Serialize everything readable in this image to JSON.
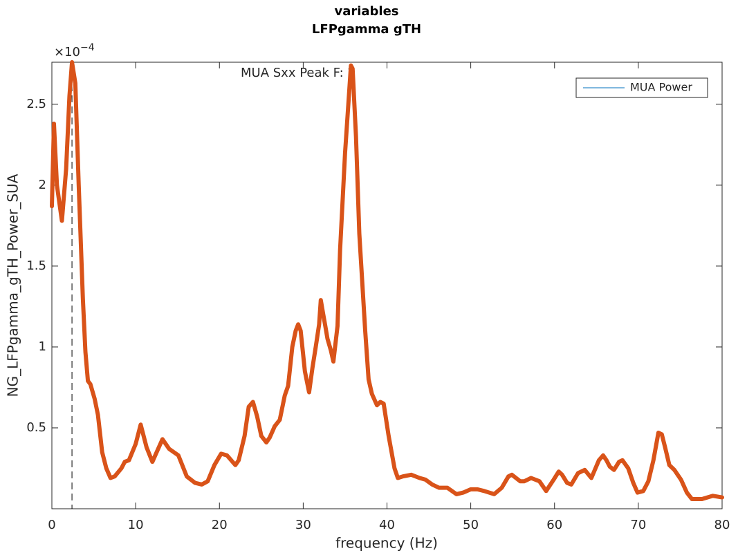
{
  "chart_data": {
    "type": "line",
    "title": [
      "variables",
      "LFPgamma gTH"
    ],
    "x_label": "frequency (Hz)",
    "y_label": "NG_LFPgamma_gTH_Power_SUA",
    "y_exponent": {
      "base": "×10",
      "power": "−4"
    },
    "annotation": "MUA Sxx Peak F: 2",
    "peak_x": 2.4,
    "xlim": [
      0,
      80
    ],
    "ylim": [
      0,
      2.76
    ],
    "xticks": [
      0,
      10,
      20,
      30,
      40,
      50,
      60,
      70,
      80
    ],
    "yticks": [
      0.5,
      1,
      1.5,
      2,
      2.5
    ],
    "legend_position": "upper right",
    "legend_color": "#0072bd",
    "series": [
      {
        "name": "MUA Power",
        "color": "#d95319",
        "x": [
          0,
          0.25,
          0.6,
          1.2,
          1.7,
          2.1,
          2.4,
          2.8,
          3.2,
          3.7,
          4.0,
          4.3,
          4.6,
          5.1,
          5.5,
          6.0,
          6.5,
          7.0,
          7.5,
          8.3,
          8.7,
          9.2,
          10.0,
          10.6,
          11.3,
          12.0,
          12.6,
          13.2,
          14.0,
          15.1,
          16.1,
          17.1,
          17.9,
          18.6,
          19.4,
          20.2,
          20.9,
          21.9,
          22.3,
          23.0,
          23.5,
          24.0,
          24.5,
          25.0,
          25.6,
          26.0,
          26.6,
          27.2,
          27.8,
          28.2,
          28.7,
          29.1,
          29.4,
          29.7,
          30.2,
          30.7,
          31.1,
          31.5,
          31.9,
          32.1,
          32.4,
          32.6,
          32.9,
          33.3,
          33.6,
          34.1,
          34.4,
          35.0,
          35.7,
          35.9,
          36.3,
          36.7,
          37.4,
          37.8,
          38.2,
          38.8,
          39.2,
          39.6,
          40.2,
          40.9,
          41.3,
          41.9,
          42.9,
          43.9,
          44.6,
          45.4,
          46.2,
          47.2,
          48.3,
          49.1,
          50.0,
          50.8,
          51.6,
          52.8,
          53.7,
          54.5,
          54.9,
          55.9,
          56.4,
          57.2,
          58.2,
          59.0,
          59.9,
          60.5,
          60.9,
          61.5,
          62.0,
          62.8,
          63.6,
          64.4,
          65.3,
          65.8,
          66.2,
          66.6,
          67.1,
          67.7,
          68.1,
          68.8,
          69.4,
          69.9,
          70.6,
          71.2,
          71.8,
          72.4,
          72.8,
          73.2,
          73.7,
          74.3,
          75.1,
          75.8,
          76.4,
          77.6,
          78.9,
          80
        ],
        "values": [
          1.87,
          2.38,
          2.0,
          1.78,
          2.1,
          2.55,
          2.76,
          2.63,
          2.0,
          1.3,
          0.97,
          0.79,
          0.77,
          0.68,
          0.58,
          0.35,
          0.25,
          0.19,
          0.2,
          0.25,
          0.29,
          0.3,
          0.4,
          0.52,
          0.38,
          0.29,
          0.36,
          0.43,
          0.37,
          0.33,
          0.2,
          0.16,
          0.15,
          0.17,
          0.27,
          0.34,
          0.33,
          0.27,
          0.3,
          0.45,
          0.63,
          0.66,
          0.57,
          0.45,
          0.41,
          0.44,
          0.51,
          0.55,
          0.7,
          0.76,
          1.0,
          1.1,
          1.14,
          1.1,
          0.85,
          0.72,
          0.87,
          1.0,
          1.14,
          1.29,
          1.2,
          1.14,
          1.05,
          0.98,
          0.91,
          1.13,
          1.6,
          2.2,
          2.74,
          2.72,
          2.3,
          1.7,
          1.1,
          0.8,
          0.71,
          0.64,
          0.66,
          0.65,
          0.45,
          0.25,
          0.19,
          0.2,
          0.21,
          0.19,
          0.18,
          0.15,
          0.13,
          0.13,
          0.09,
          0.1,
          0.12,
          0.12,
          0.11,
          0.09,
          0.13,
          0.2,
          0.21,
          0.17,
          0.17,
          0.19,
          0.17,
          0.11,
          0.18,
          0.23,
          0.21,
          0.16,
          0.15,
          0.22,
          0.24,
          0.19,
          0.3,
          0.33,
          0.3,
          0.26,
          0.24,
          0.29,
          0.3,
          0.25,
          0.16,
          0.1,
          0.11,
          0.17,
          0.3,
          0.47,
          0.46,
          0.38,
          0.27,
          0.24,
          0.18,
          0.1,
          0.06,
          0.06,
          0.08,
          0.07
        ]
      }
    ]
  }
}
